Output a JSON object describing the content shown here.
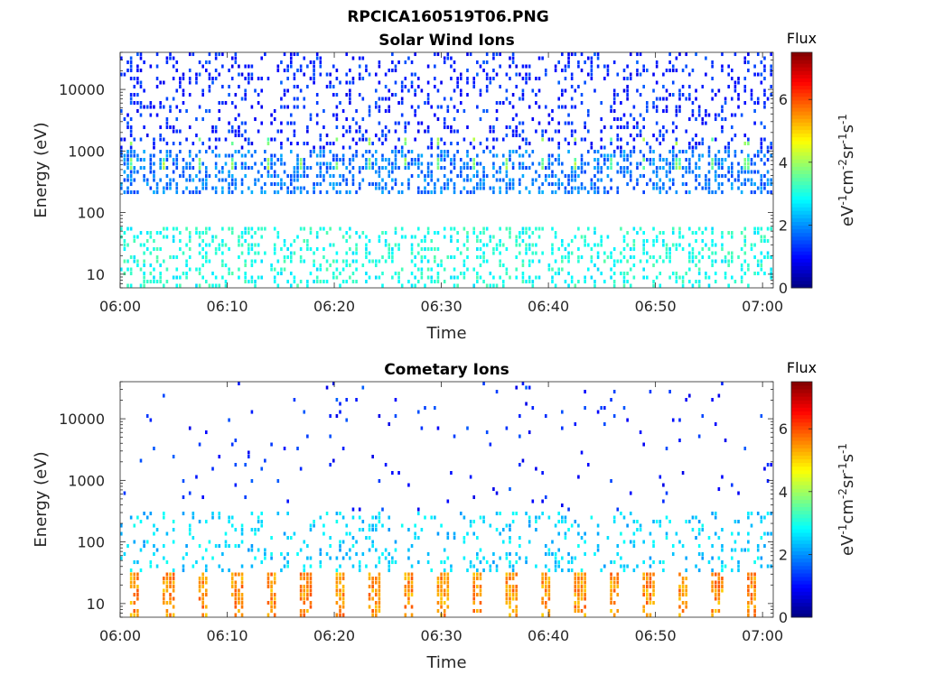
{
  "figure_title": "RPCICA160519T06.PNG",
  "colormap": "jet",
  "chart_data": [
    {
      "type": "heatmap",
      "title": "Solar Wind Ions",
      "xlabel": "Time",
      "ylabel": "Energy (eV)",
      "x_ticks": [
        "06:00",
        "06:10",
        "06:20",
        "06:30",
        "06:40",
        "06:50",
        "07:00"
      ],
      "x_range": [
        "06:00",
        "07:01"
      ],
      "y_scale": "log",
      "y_ticks": [
        "10",
        "100",
        "1000",
        "10000"
      ],
      "y_range": [
        6,
        40000
      ],
      "colorbar": {
        "title": "Flux",
        "label": "eV-1cm-2sr-1s-1",
        "ticks": [
          "0",
          "2",
          "4",
          "6"
        ],
        "range": [
          0,
          7.5
        ]
      },
      "features": [
        {
          "description": "sparse blue counts",
          "energy_range": [
            1000,
            40000
          ],
          "flux": 1.2
        },
        {
          "description": "dense blue/cyan counts",
          "energy_range": [
            200,
            1000
          ],
          "flux": 1.8
        },
        {
          "description": "periodic bright sweeps",
          "energy_eV": 650,
          "period_min": 3.2,
          "flux": 3.8
        },
        {
          "description": "cyan low energy band",
          "energy_range": [
            6,
            60
          ],
          "flux": 3.0
        }
      ]
    },
    {
      "type": "heatmap",
      "title": "Cometary Ions",
      "xlabel": "Time",
      "ylabel": "Energy (eV)",
      "x_ticks": [
        "06:00",
        "06:10",
        "06:20",
        "06:30",
        "06:40",
        "06:50",
        "07:00"
      ],
      "x_range": [
        "06:00",
        "07:01"
      ],
      "y_scale": "log",
      "y_ticks": [
        "10",
        "100",
        "1000",
        "10000"
      ],
      "y_range": [
        6,
        40000
      ],
      "colorbar": {
        "title": "Flux",
        "label": "eV-1cm-2sr-1s-1",
        "ticks": [
          "0",
          "2",
          "4",
          "6"
        ],
        "range": [
          0,
          7.5
        ]
      },
      "features": [
        {
          "description": "sparse blue counts",
          "energy_range": [
            300,
            40000
          ],
          "flux": 1.2
        },
        {
          "description": "cyan counts",
          "energy_range": [
            30,
            300
          ],
          "flux": 2.5
        },
        {
          "description": "periodic bright bursts",
          "energy_range": [
            12,
            30
          ],
          "period_min": 3.2,
          "flux": 5.5
        }
      ]
    }
  ]
}
